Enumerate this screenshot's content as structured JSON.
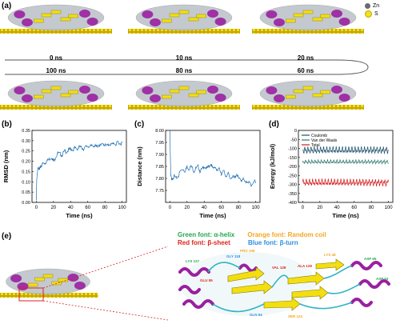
{
  "panel_a": {
    "letter": "(a)",
    "legend": [
      {
        "label": "Zn",
        "color": "#6b6b6b"
      },
      {
        "label": "S",
        "color": "#f2e21a"
      }
    ],
    "time_labels_top": [
      "0 ns",
      "10 ns",
      "20 ns"
    ],
    "time_labels_bottom": [
      "100 ns",
      "80 ns",
      "60 ns"
    ]
  },
  "panel_e": {
    "letter": "(e)",
    "legend": [
      {
        "text": "Green font: α-helix",
        "color": "#22a84a"
      },
      {
        "text": "Orange font: Random coil",
        "color": "#f5a623"
      },
      {
        "text": "Red font: β-sheet",
        "color": "#e0231c"
      },
      {
        "text": "Blue font: β-turn",
        "color": "#2e8fe0"
      }
    ]
  },
  "colors": {
    "protein_surface": "#b9c0c7",
    "helix": "#9b1fa0",
    "sheet": "#f3df10",
    "coil": "#2fb4c4",
    "substrate": "#c7a800"
  },
  "chart_data": [
    {
      "letter": "(b)",
      "type": "line",
      "xlabel": "Time (ns)",
      "ylabel": "RMSD (nm)",
      "xlim": [
        -5,
        105
      ],
      "ylim": [
        0,
        0.35
      ],
      "xticks": [
        0,
        20,
        40,
        60,
        80,
        100
      ],
      "yticks": [
        0.0,
        0.05,
        0.1,
        0.15,
        0.2,
        0.25,
        0.3,
        0.35
      ],
      "ytick_labels": [
        "0.00",
        "0.05",
        "0.10",
        "0.15",
        "0.20",
        "0.25",
        "0.30",
        "0.35"
      ],
      "series": [
        {
          "color": "#1f6fb3",
          "x": [
            0,
            0.5,
            1,
            2,
            3,
            4,
            5,
            6,
            8,
            10,
            12,
            15,
            18,
            20,
            22,
            25,
            28,
            30,
            33,
            35,
            38,
            40,
            43,
            45,
            48,
            50,
            53,
            55,
            58,
            60,
            63,
            65,
            68,
            70,
            73,
            75,
            78,
            80,
            83,
            85,
            88,
            90,
            93,
            95,
            98,
            100
          ],
          "y": [
            0.01,
            0.11,
            0.14,
            0.16,
            0.17,
            0.165,
            0.17,
            0.18,
            0.19,
            0.19,
            0.2,
            0.21,
            0.22,
            0.2,
            0.215,
            0.24,
            0.235,
            0.23,
            0.25,
            0.245,
            0.255,
            0.26,
            0.255,
            0.265,
            0.26,
            0.27,
            0.265,
            0.26,
            0.27,
            0.275,
            0.27,
            0.28,
            0.275,
            0.27,
            0.28,
            0.275,
            0.285,
            0.28,
            0.275,
            0.285,
            0.28,
            0.29,
            0.28,
            0.295,
            0.285,
            0.29
          ]
        }
      ]
    },
    {
      "letter": "(c)",
      "type": "line",
      "xlabel": "Time (ns)",
      "ylabel": "Distance (nm)",
      "xlim": [
        -5,
        105
      ],
      "ylim": [
        7.7,
        8.0
      ],
      "xticks": [
        0,
        20,
        40,
        60,
        80,
        100
      ],
      "yticks": [
        7.75,
        7.8,
        7.85,
        7.9,
        7.95,
        8.0
      ],
      "ytick_labels": [
        "7.75",
        "7.80",
        "7.85",
        "7.90",
        "7.95",
        "8.00"
      ],
      "series": [
        {
          "color": "#1f6fb3",
          "x": [
            0,
            0.5,
            1,
            2,
            3,
            5,
            7,
            10,
            12,
            15,
            18,
            20,
            22,
            25,
            28,
            30,
            33,
            35,
            38,
            40,
            43,
            45,
            48,
            50,
            53,
            55,
            58,
            60,
            63,
            65,
            68,
            70,
            73,
            75,
            78,
            80,
            83,
            85,
            88,
            90,
            93,
            95,
            98,
            100
          ],
          "y": [
            8.0,
            7.9,
            7.82,
            7.79,
            7.8,
            7.81,
            7.8,
            7.81,
            7.83,
            7.84,
            7.83,
            7.85,
            7.84,
            7.85,
            7.83,
            7.84,
            7.85,
            7.83,
            7.84,
            7.85,
            7.84,
            7.85,
            7.86,
            7.84,
            7.85,
            7.83,
            7.84,
            7.82,
            7.83,
            7.81,
            7.82,
            7.8,
            7.81,
            7.8,
            7.82,
            7.8,
            7.79,
            7.8,
            7.78,
            7.79,
            7.78,
            7.77,
            7.79,
            7.78
          ]
        }
      ]
    },
    {
      "letter": "(d)",
      "type": "line",
      "xlabel": "Time (ns)",
      "ylabel": "Energy (kJ/mol)",
      "xlim": [
        -5,
        105
      ],
      "ylim": [
        -400,
        0
      ],
      "xticks": [
        0,
        20,
        40,
        60,
        80,
        100
      ],
      "yticks": [
        -400,
        -350,
        -300,
        -250,
        -200,
        -150,
        -100,
        -50,
        0
      ],
      "ytick_labels": [
        "-400",
        "-350",
        "-300",
        "-250",
        "-200",
        "-150",
        "-100",
        "-50",
        "0"
      ],
      "legend": [
        "Coulomb",
        "Van der Waals",
        "Total"
      ],
      "series": [
        {
          "name": "Coulomb",
          "color": "#1d4f6b",
          "base": -110,
          "amp": 45
        },
        {
          "name": "Van der Waals",
          "color": "#2c7a6b",
          "base": -175,
          "amp": 25
        },
        {
          "name": "Total",
          "color": "#d01c1c",
          "base": -290,
          "amp": 45
        }
      ]
    }
  ]
}
